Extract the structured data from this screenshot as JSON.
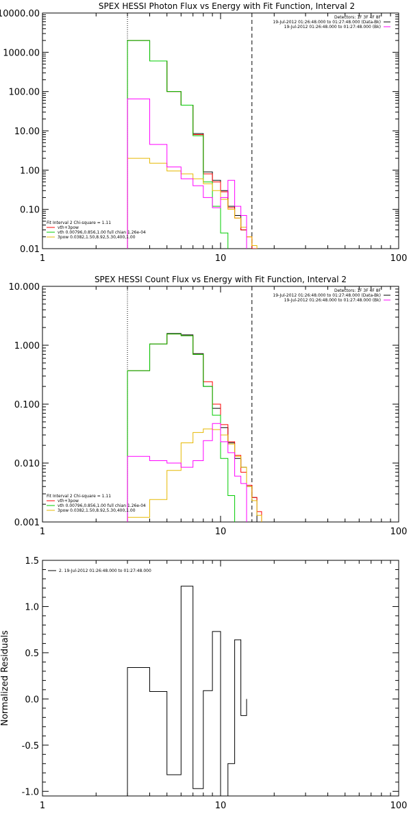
{
  "chart_data": [
    {
      "type": "line",
      "title": "SPEX HESSI Photon Flux vs Energy with Fit Function, Interval 2",
      "xscale": "log",
      "yscale": "log",
      "xlim": [
        1,
        100
      ],
      "ylim": [
        0.01,
        10000
      ],
      "x_tick_labels": [
        "1",
        "10",
        "100"
      ],
      "y_tick_labels": [
        "0.01",
        "0.10",
        "1.00",
        "10.00",
        "100.00",
        "1000.00",
        "10000.00"
      ],
      "top_right_legend": [
        {
          "text": "Detectors: 1F 3F 4F 8F",
          "color": "#000000"
        },
        {
          "text": "19-Jul-2012 01:26:48.000 to 01:27:48.000 (Data-Bk)",
          "color": "#000000"
        },
        {
          "text": "19-Jul-2012 01:26:48.000 to 01:27:48.000 (Bk)",
          "color": "#ff00ff"
        }
      ],
      "bottom_left_legend": [
        {
          "text": "Fit Interval 2   Chi-square = 1.11",
          "color": ""
        },
        {
          "text": "vth+3pow",
          "color": "#ff0000"
        },
        {
          "text": "vth 0.00796,0.856,1.00   full chian 1.26e-04",
          "color": "#00cc00"
        },
        {
          "text": "3pow 0.0382,1.50,8.92,5.30,400,1.00",
          "color": "#e6b800"
        }
      ],
      "vlines": [
        {
          "x": 3,
          "style": "dotted"
        },
        {
          "x": 15,
          "style": "dashed"
        }
      ],
      "bin_edges": [
        3,
        4,
        5,
        6,
        7,
        8,
        9,
        10,
        11,
        12,
        13,
        14,
        15,
        16,
        17,
        18
      ],
      "series": [
        {
          "name": "Data-Bk",
          "color": "#000000",
          "values": [
            2000,
            600,
            100,
            45,
            8.5,
            0.9,
            0.55,
            0.3,
            0.12,
            0.07,
            0.03
          ]
        },
        {
          "name": "vth+3pow",
          "color": "#ff0000",
          "values": [
            2000,
            600,
            100,
            45,
            8,
            0.8,
            0.5,
            0.28,
            0.11,
            0.06,
            0.03,
            0.02,
            0.01,
            0.005
          ]
        },
        {
          "name": "vth",
          "color": "#00cc00",
          "values": [
            2000,
            600,
            100,
            45,
            7.5,
            0.5,
            0.12,
            0.025,
            0.005
          ]
        },
        {
          "name": "3pow",
          "color": "#e6b800",
          "values": [
            2,
            1.5,
            0.95,
            0.8,
            0.6,
            0.45,
            0.3,
            0.18,
            0.1,
            0.06,
            0.035,
            0.02,
            0.012,
            0.008,
            0.005
          ]
        },
        {
          "name": "Bk",
          "color": "#ff00ff",
          "values": [
            65,
            4.5,
            1.2,
            0.6,
            0.4,
            0.2,
            0.11,
            0.2,
            0.55,
            0.12,
            0.07,
            0.009
          ]
        }
      ]
    },
    {
      "type": "line",
      "title": "SPEX HESSI Count Flux vs Energy with Fit Function, Interval 2",
      "xscale": "log",
      "yscale": "log",
      "xlim": [
        1,
        100
      ],
      "ylim": [
        0.001,
        10
      ],
      "x_tick_labels": [
        "1",
        "10",
        "100"
      ],
      "y_tick_labels": [
        "0.001",
        "0.010",
        "0.100",
        "1.000",
        "10.000"
      ],
      "top_right_legend": [
        {
          "text": "Detectors: 1F 3F 4F 8F",
          "color": "#000000"
        },
        {
          "text": "19-Jul-2012 01:26:48.000 to 01:27:48.000 (Data-Bk)",
          "color": "#000000"
        },
        {
          "text": "19-Jul-2012 01:26:48.000 to 01:27:48.000 (Bk)",
          "color": "#ff00ff"
        }
      ],
      "bottom_left_legend": [
        {
          "text": "Fit Interval 2   Chi-square = 1.11",
          "color": ""
        },
        {
          "text": "vth+3pow",
          "color": "#ff0000"
        },
        {
          "text": "vth 0.00796,0.856,1.00   full chian 1.26e-04",
          "color": "#00cc00"
        },
        {
          "text": "3pow 0.0382,1.50,8.92,5.30,400,1.00",
          "color": "#e6b800"
        }
      ],
      "vlines": [
        {
          "x": 3,
          "style": "dotted"
        },
        {
          "x": 15,
          "style": "dashed"
        }
      ],
      "bin_edges": [
        3,
        4,
        5,
        6,
        7,
        8,
        9,
        10,
        11,
        12,
        13,
        14,
        15,
        16,
        17,
        18
      ],
      "series": [
        {
          "name": "Data-Bk",
          "color": "#000000",
          "values": [
            0.37,
            1.05,
            1.58,
            1.5,
            0.72,
            0.2,
            0.085,
            0.04,
            0.022,
            0.012,
            0.0085,
            0.004,
            0.0026
          ]
        },
        {
          "name": "vth+3pow",
          "color": "#ff0000",
          "values": [
            0.37,
            1.05,
            1.55,
            1.45,
            0.7,
            0.24,
            0.1,
            0.045,
            0.023,
            0.0135,
            0.007,
            0.0042,
            0.0026,
            0.0015
          ]
        },
        {
          "name": "vth",
          "color": "#00cc00",
          "values": [
            0.37,
            1.05,
            1.55,
            1.45,
            0.7,
            0.2,
            0.065,
            0.012,
            0.0028
          ]
        },
        {
          "name": "3pow",
          "color": "#e6b800",
          "values": [
            0.0012,
            0.0024,
            0.0075,
            0.022,
            0.033,
            0.038,
            0.037,
            0.03,
            0.021,
            0.013,
            0.0085,
            0.004,
            0.0023,
            0.0013,
            0.0009
          ]
        },
        {
          "name": "Bk",
          "color": "#ff00ff",
          "values": [
            0.013,
            0.011,
            0.01,
            0.0085,
            0.011,
            0.024,
            0.047,
            0.023,
            0.015,
            0.006,
            0.0045,
            0.0008
          ]
        }
      ]
    },
    {
      "type": "line",
      "title": "",
      "xscale": "log",
      "yscale": "linear",
      "xlim": [
        1,
        100
      ],
      "ylim": [
        -1.05,
        1.5
      ],
      "ylabel": "Normalized Residuals",
      "x_tick_labels": [
        "1",
        "10",
        "100"
      ],
      "y_tick_labels": [
        "-1.0",
        "-0.5",
        "0.0",
        "0.5",
        "1.0",
        "1.5"
      ],
      "y_ticks": [
        -1.0,
        -0.5,
        0.0,
        0.5,
        1.0,
        1.5
      ],
      "legend": [
        {
          "text": "2. 19-Jul-2012 01:26:48.000 to 01:27:48.000",
          "color": "#000000"
        }
      ],
      "bin_edges": [
        3,
        4,
        5,
        6,
        7,
        8,
        9,
        10,
        11,
        12,
        13,
        14,
        15
      ],
      "series": [
        {
          "name": "2. 19-Jul-2012 01:26:48.000 to 01:27:48.000",
          "color": "#000000",
          "values": [
            0.34,
            0.08,
            -0.82,
            1.22,
            -0.97,
            0.09,
            0.73,
            -1.05,
            -0.7,
            0.64,
            -0.18
          ]
        }
      ]
    }
  ]
}
